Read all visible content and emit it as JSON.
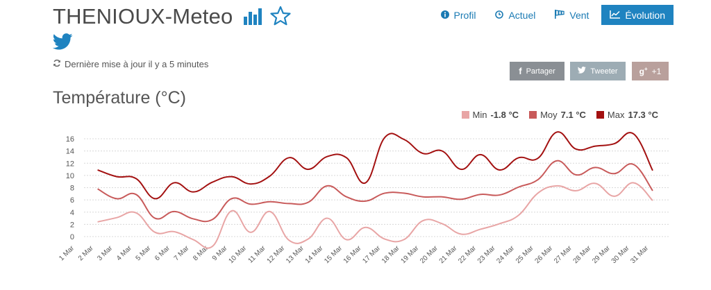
{
  "header": {
    "title": "THENIOUX-Meteo",
    "bar_chart_icon": "bar-chart-icon",
    "star_icon": "star-outline-icon",
    "twitter_icon": "twitter-icon"
  },
  "update": {
    "icon": "refresh-icon",
    "text": "Dernière mise à jour il y a 5 minutes"
  },
  "nav": {
    "items": [
      {
        "label": "Profil",
        "icon": "info-circle-icon"
      },
      {
        "label": "Actuel",
        "icon": "clock-icon"
      },
      {
        "label": "Vent",
        "icon": "windsock-icon"
      },
      {
        "label": "Évolution",
        "icon": "line-chart-icon",
        "active": true
      }
    ]
  },
  "share": {
    "facebook": "Partager",
    "twitter": "Tweeter",
    "gplus": "+1",
    "colors": {
      "facebook": "#8a8f94",
      "twitter": "#9dacb4",
      "gplus": "#b9a09c"
    }
  },
  "section": {
    "title": "Température (°C)"
  },
  "legend": [
    {
      "name": "Min",
      "value": "-1.8 °C",
      "color": "#e8a5a5"
    },
    {
      "name": "Moy",
      "value": "7.1 °C",
      "color": "#c85a5a"
    },
    {
      "name": "Max",
      "value": "17.3 °C",
      "color": "#a31010"
    }
  ],
  "chart_data": {
    "type": "line",
    "x": [
      "1 Mar",
      "2 Mar",
      "3 Mar",
      "4 Mar",
      "5 Mar",
      "6 Mar",
      "7 Mar",
      "8 Mar",
      "9 Mar",
      "10 Mar",
      "11 Mar",
      "12 Mar",
      "13 Mar",
      "14 Mar",
      "15 Mar",
      "16 Mar",
      "17 Mar",
      "18 Mar",
      "19 Mar",
      "20 Mar",
      "21 Mar",
      "22 Mar",
      "23 Mar",
      "24 Mar",
      "25 Mar",
      "26 Mar",
      "27 Mar",
      "28 Mar",
      "29 Mar",
      "30 Mar",
      "31 Mar"
    ],
    "yticks": [
      0,
      2,
      4,
      6,
      8,
      10,
      12,
      14,
      16
    ],
    "ylim": [
      -2,
      17.5
    ],
    "grid": true,
    "series": [
      {
        "name": "Min",
        "color": "#e8a5a5",
        "values": [
          null,
          2.4,
          3.1,
          3.9,
          0.7,
          0.8,
          -0.5,
          -1.6,
          4.2,
          0.7,
          4.1,
          -0.6,
          -0.4,
          3.0,
          -0.5,
          1.5,
          -0.4,
          -0.5,
          2.6,
          2.1,
          0.4,
          1.2,
          2.1,
          3.5,
          7.1,
          8.3,
          7.5,
          8.7,
          6.6,
          8.8,
          5.9
        ]
      },
      {
        "name": "Moy",
        "color": "#c85a5a",
        "values": [
          null,
          7.8,
          6.2,
          6.9,
          3.0,
          4.1,
          2.9,
          2.8,
          6.2,
          5.3,
          5.7,
          5.4,
          5.6,
          8.3,
          6.5,
          5.8,
          7.1,
          7.1,
          6.5,
          6.5,
          6.1,
          6.9,
          6.8,
          8.1,
          9.3,
          12.4,
          10.1,
          11.3,
          10.3,
          11.8,
          7.5
        ]
      },
      {
        "name": "Max",
        "color": "#a31010",
        "values": [
          null,
          10.9,
          9.8,
          9.5,
          6.2,
          8.8,
          7.3,
          8.9,
          9.8,
          8.6,
          9.9,
          12.9,
          11.0,
          13.1,
          12.9,
          8.8,
          16.2,
          15.9,
          13.6,
          14.0,
          11.0,
          13.4,
          10.9,
          12.9,
          12.8,
          17.1,
          14.3,
          14.8,
          15.2,
          16.8,
          10.8
        ]
      }
    ]
  }
}
